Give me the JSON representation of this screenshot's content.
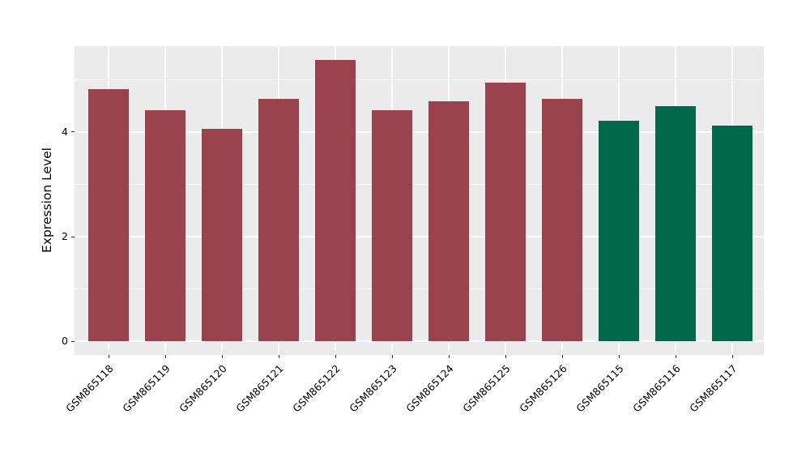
{
  "chart_data": {
    "type": "bar",
    "title": "",
    "xlabel": "",
    "ylabel": "Expression Level",
    "categories": [
      "GSM865118",
      "GSM865119",
      "GSM865120",
      "GSM865121",
      "GSM865122",
      "GSM865123",
      "GSM865124",
      "GSM865125",
      "GSM865126",
      "GSM865115",
      "GSM865116",
      "GSM865117"
    ],
    "values": [
      4.82,
      4.42,
      4.06,
      4.64,
      5.37,
      4.42,
      4.59,
      4.94,
      4.64,
      4.21,
      4.49,
      4.12
    ],
    "bar_colors": [
      "#9A424E",
      "#9A424E",
      "#9A424E",
      "#9A424E",
      "#9A424E",
      "#9A424E",
      "#9A424E",
      "#9A424E",
      "#9A424E",
      "#006949",
      "#006949",
      "#006949"
    ],
    "y_axis": {
      "ticks": [
        {
          "value": 0,
          "label": "0"
        },
        {
          "value": 2,
          "label": "2"
        },
        {
          "value": 4,
          "label": "4"
        }
      ],
      "minor_ticks": [
        1,
        3,
        5
      ],
      "ylim": [
        -0.26,
        5.64
      ]
    },
    "grid": true,
    "legend": null,
    "style": {
      "figure_bg": "#FFFFFF",
      "panel_bg": "#EBEBEB",
      "grid_major_color": "#FFFFFF",
      "grid_minor_color": "#FFFFFF",
      "tick_color": "#333333",
      "text_color": "#000000"
    }
  }
}
